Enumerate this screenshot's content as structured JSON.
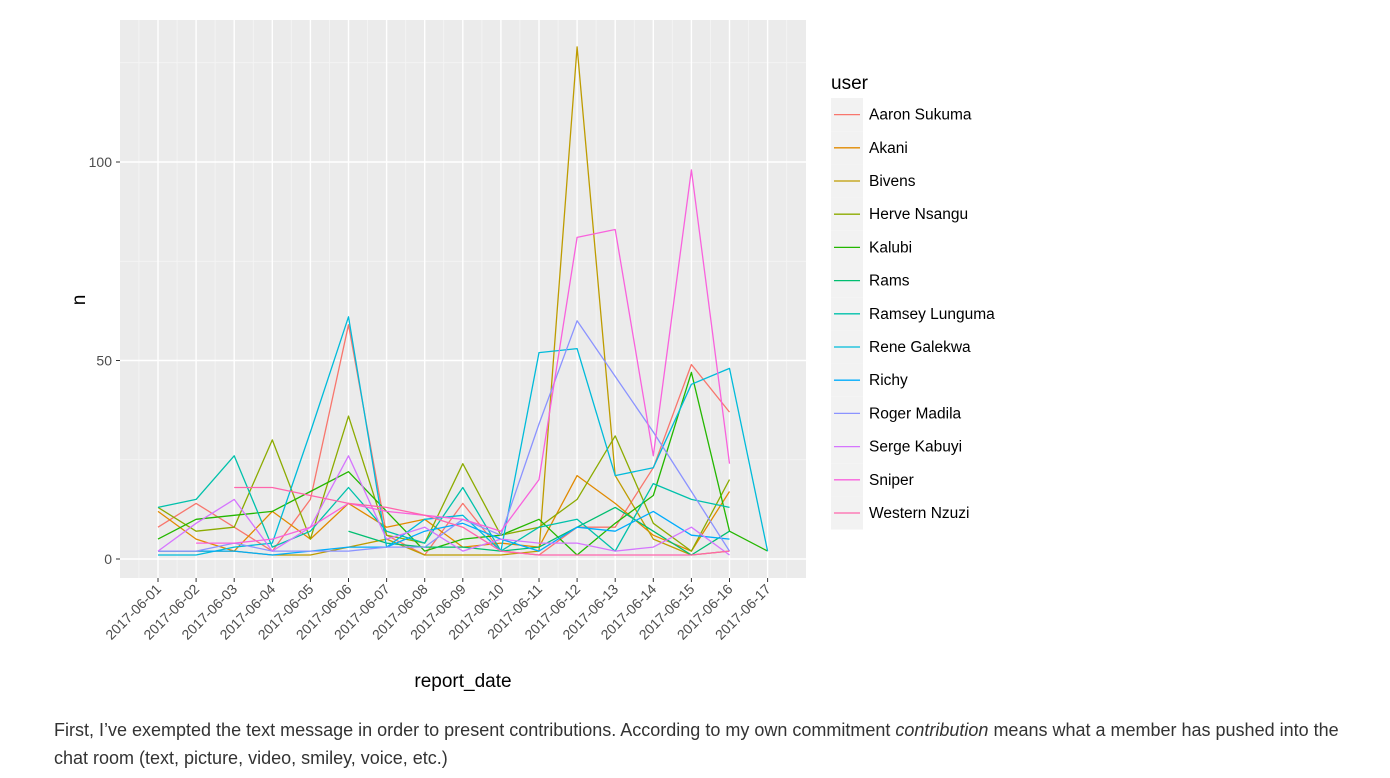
{
  "chart_data": {
    "type": "line",
    "xlabel": "report_date",
    "ylabel": "n",
    "legend_title": "user",
    "legend_position": "right",
    "grid": true,
    "categories": [
      "2017-06-01",
      "2017-06-02",
      "2017-06-03",
      "2017-06-04",
      "2017-06-05",
      "2017-06-06",
      "2017-06-07",
      "2017-06-08",
      "2017-06-09",
      "2017-06-10",
      "2017-06-11",
      "2017-06-12",
      "2017-06-13",
      "2017-06-14",
      "2017-06-15",
      "2017-06-16",
      "2017-06-17"
    ],
    "yticks": [
      0,
      50,
      100
    ],
    "ylim": [
      -4,
      136
    ],
    "series": [
      {
        "name": "Aaron Sukuma",
        "color": "#F8766D",
        "values": [
          8,
          14,
          8,
          2,
          15,
          59,
          6,
          1,
          14,
          2,
          1,
          8,
          8,
          23,
          49,
          37,
          null
        ]
      },
      {
        "name": "Akani",
        "color": "#E18A00",
        "values": [
          12,
          5,
          2,
          12,
          5,
          14,
          8,
          10,
          3,
          4,
          3,
          21,
          14,
          6,
          2,
          17,
          null
        ]
      },
      {
        "name": "Bivens",
        "color": "#BE9C00",
        "values": [
          2,
          2,
          2,
          1,
          1,
          3,
          5,
          1,
          1,
          1,
          2,
          129,
          21,
          5,
          1,
          2,
          null
        ]
      },
      {
        "name": "Herve Nsangu",
        "color": "#8CAB00",
        "values": [
          13,
          7,
          8,
          30,
          5,
          36,
          6,
          4,
          24,
          6,
          8,
          15,
          31,
          9,
          2,
          20,
          null
        ]
      },
      {
        "name": "Kalubi",
        "color": "#24B700",
        "values": [
          5,
          10,
          11,
          12,
          17,
          22,
          12,
          2,
          5,
          6,
          10,
          1,
          9,
          16,
          47,
          7,
          2
        ]
      },
      {
        "name": "Rams",
        "color": "#00BE70",
        "values": [
          null,
          null,
          null,
          null,
          null,
          7,
          4,
          3,
          3,
          2,
          3,
          8,
          13,
          7,
          1,
          7,
          null
        ]
      },
      {
        "name": "Ramsey Lunguma",
        "color": "#00C1AB",
        "values": [
          13,
          15,
          26,
          3,
          7,
          18,
          7,
          4,
          18,
          2,
          8,
          10,
          2,
          19,
          15,
          13,
          null
        ]
      },
      {
        "name": "Rene Galekwa",
        "color": "#00BBDA",
        "values": [
          1,
          1,
          3,
          4,
          32,
          61,
          3,
          10,
          11,
          2,
          52,
          53,
          21,
          23,
          44,
          48,
          2
        ]
      },
      {
        "name": "Richy",
        "color": "#00ACFC",
        "values": [
          2,
          2,
          2,
          1,
          2,
          3,
          3,
          7,
          9,
          5,
          2,
          8,
          7,
          12,
          6,
          5,
          null
        ]
      },
      {
        "name": "Roger Madila",
        "color": "#8B93FF",
        "values": [
          2,
          2,
          4,
          2,
          2,
          2,
          3,
          3,
          10,
          6,
          34,
          60,
          46,
          32,
          17,
          2,
          null
        ]
      },
      {
        "name": "Serge Kabuyi",
        "color": "#D575FE",
        "values": [
          2,
          9,
          15,
          2,
          8,
          26,
          5,
          8,
          2,
          5,
          4,
          4,
          2,
          3,
          8,
          1,
          null
        ]
      },
      {
        "name": "Sniper",
        "color": "#F962DD",
        "values": [
          null,
          4,
          4,
          5,
          8,
          14,
          12,
          11,
          10,
          7,
          20,
          81,
          83,
          26,
          98,
          24,
          null
        ]
      },
      {
        "name": "Western Nzuzi",
        "color": "#FF65AC",
        "values": [
          null,
          null,
          18,
          18,
          16,
          14,
          13,
          11,
          8,
          2,
          1,
          1,
          1,
          1,
          1,
          2,
          null
        ]
      }
    ]
  },
  "caption": {
    "part1": "First, I’ve exempted the text message in order to present contributions. According to my own commitment ",
    "emphasis": "contribution",
    "part2": " means what a member has pushed into the chat room (text, picture, video, smiley, voice, etc.)"
  }
}
